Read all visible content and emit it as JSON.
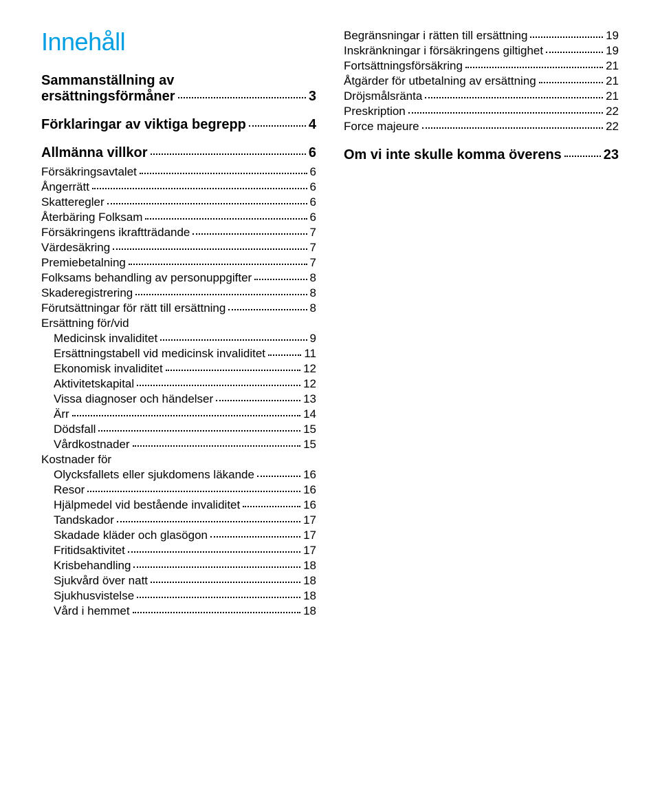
{
  "title": "Innehåll",
  "colors": {
    "title": "#009fe3",
    "text": "#000000",
    "background": "#ffffff"
  },
  "left": {
    "section1": {
      "line1": "Sammanställning av",
      "line2": "ersättningsförmåner",
      "page": "3"
    },
    "section2": {
      "label": "Förklaringar av viktiga begrepp",
      "page": "4"
    },
    "section3": {
      "label": "Allmänna villkor",
      "page": "6",
      "items": [
        {
          "label": "Försäkringsavtalet",
          "page": "6"
        },
        {
          "label": "Ångerrätt",
          "page": "6"
        },
        {
          "label": "Skatteregler",
          "page": "6"
        },
        {
          "label": "Återbäring Folksam",
          "page": "6"
        },
        {
          "label": "Försäkringens ikraftträdande",
          "page": "7"
        },
        {
          "label": "Värdesäkring",
          "page": "7"
        },
        {
          "label": "Premiebetalning",
          "page": "7"
        },
        {
          "label": "Folksams behandling av personuppgifter",
          "page": "8"
        },
        {
          "label": "Skaderegistrering",
          "page": "8"
        },
        {
          "label": "Förutsättningar för rätt till ersättning",
          "page": "8"
        }
      ],
      "group1_label": "Ersättning för/vid",
      "group1_items": [
        {
          "label": "Medicinsk invaliditet",
          "page": "9"
        },
        {
          "label": "Ersättningstabell vid medicinsk invaliditet",
          "page": "11"
        },
        {
          "label": "Ekonomisk invaliditet",
          "page": "12"
        },
        {
          "label": "Aktivitetskapital",
          "page": "12"
        },
        {
          "label": "Vissa diagnoser och händelser",
          "page": "13"
        },
        {
          "label": "Ärr",
          "page": "14"
        },
        {
          "label": "Dödsfall",
          "page": "15"
        },
        {
          "label": "Vårdkostnader",
          "page": "15"
        }
      ],
      "group2_label": "Kostnader för",
      "group2_items": [
        {
          "label": "Olycksfallets eller sjukdomens läkande",
          "page": "16"
        },
        {
          "label": "Resor",
          "page": "16"
        },
        {
          "label": "Hjälpmedel vid bestående invaliditet",
          "page": "16"
        },
        {
          "label": "Tandskador",
          "page": "17"
        },
        {
          "label": "Skadade kläder och glasögon",
          "page": "17"
        },
        {
          "label": "Fritidsaktivitet",
          "page": "17"
        },
        {
          "label": "Krisbehandling",
          "page": "18"
        },
        {
          "label": "Sjukvård över natt",
          "page": "18"
        },
        {
          "label": "Sjukhusvistelse",
          "page": "18"
        },
        {
          "label": "Vård i hemmet",
          "page": "18"
        }
      ]
    }
  },
  "right": {
    "top_items": [
      {
        "label": "Begränsningar i rätten till ersättning",
        "page": "19"
      },
      {
        "label": "Inskränkningar i försäkringens giltighet",
        "page": "19"
      },
      {
        "label": "Fortsättningsförsäkring",
        "page": "21"
      },
      {
        "label": "Åtgärder för utbetalning av ersättning",
        "page": "21"
      },
      {
        "label": "Dröjsmålsränta",
        "page": "21"
      },
      {
        "label": "Preskription",
        "page": "22"
      },
      {
        "label": "Force majeure",
        "page": "22"
      }
    ],
    "section": {
      "label": "Om vi inte skulle komma överens",
      "page": "23"
    }
  }
}
